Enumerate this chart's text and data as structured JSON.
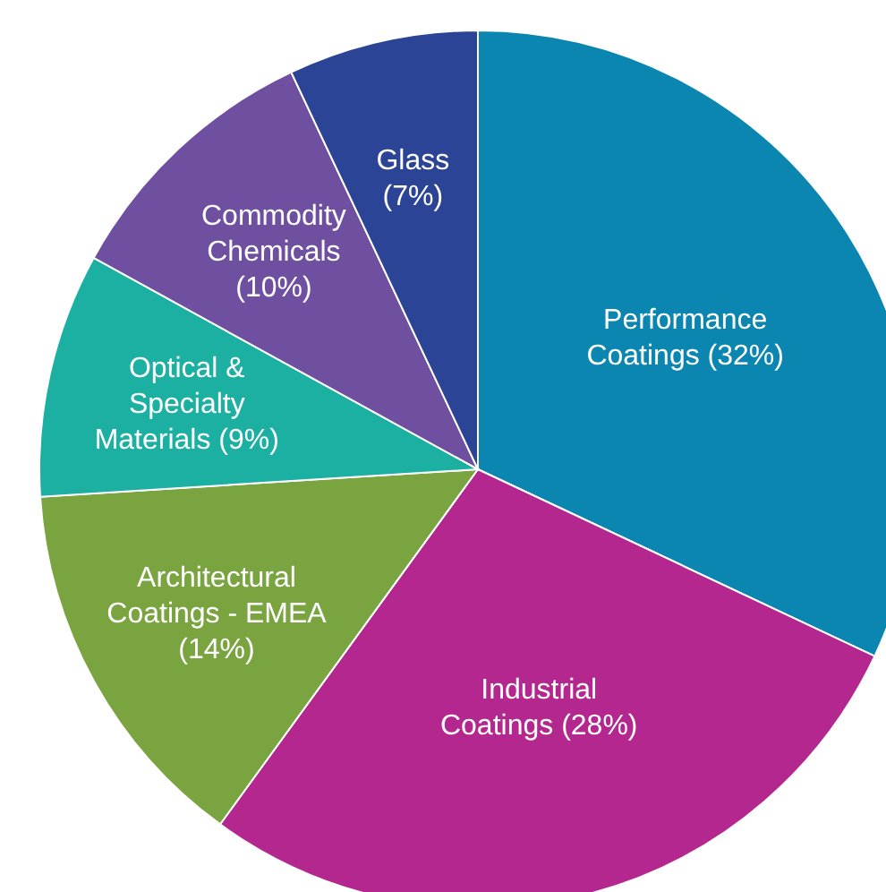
{
  "chart_data": {
    "type": "pie",
    "categories": [
      "Performance Coatings",
      "Industrial Coatings",
      "Architectural Coatings - EMEA",
      "Optical & Specialty Materials",
      "Commodity Chemicals",
      "Glass"
    ],
    "values": [
      32,
      28,
      14,
      9,
      10,
      7
    ],
    "colors": [
      "#0a86b0",
      "#b4278e",
      "#7aa43f",
      "#1bb0a2",
      "#6f4f9f",
      "#2c4496"
    ],
    "value_labels": [
      "(32%)",
      "(28%)",
      "(14%)",
      "(9%)",
      "(10%)",
      "(7%)"
    ],
    "legend": false
  }
}
